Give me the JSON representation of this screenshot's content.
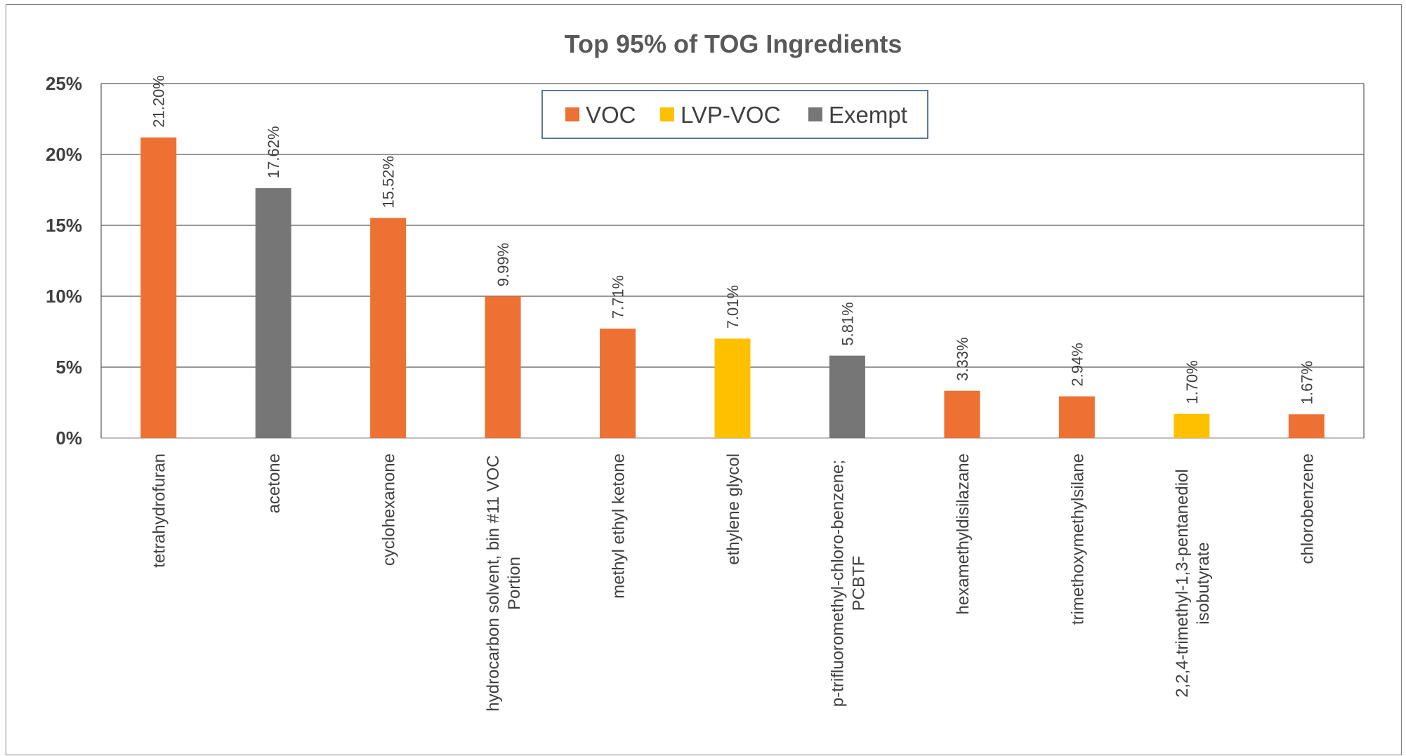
{
  "chart_data": {
    "type": "bar",
    "title": "Top 95% of TOG Ingredients",
    "xlabel": "",
    "ylabel": "",
    "ylim": [
      0,
      25
    ],
    "y_ticks": [
      "0%",
      "5%",
      "10%",
      "15%",
      "20%",
      "25%"
    ],
    "y_tick_values": [
      0,
      5,
      10,
      15,
      20,
      25
    ],
    "grid": true,
    "legend_position": "top-center",
    "legend": [
      {
        "name": "VOC",
        "color": "#ED7132"
      },
      {
        "name": "LVP-VOC",
        "color": "#FFC000"
      },
      {
        "name": "Exempt",
        "color": "#767676"
      }
    ],
    "categories": [
      [
        "tetrahydrofuran"
      ],
      [
        "acetone"
      ],
      [
        "cyclohexanone"
      ],
      [
        "hydrocarbon solvent, bin #11 VOC",
        "Portion"
      ],
      [
        "methyl ethyl ketone"
      ],
      [
        "ethylene glycol"
      ],
      [
        "p-trifluoromethyl-chloro-benzene;",
        "PCBTF"
      ],
      [
        "hexamethyldisilazane"
      ],
      [
        "trimethoxymethylsilane"
      ],
      [
        "2,2,4-trimethyl-1,3-pentanediol",
        "isobutyrate"
      ],
      [
        "chlorobenzene"
      ]
    ],
    "values": [
      21.2,
      17.62,
      15.52,
      9.99,
      7.71,
      7.01,
      5.81,
      3.33,
      2.94,
      1.7,
      1.67
    ],
    "value_labels": [
      "21.20%",
      "17.62%",
      "15.52%",
      "9.99%",
      "7.71%",
      "7.01%",
      "5.81%",
      "3.33%",
      "2.94%",
      "1.70%",
      "1.67%"
    ],
    "classes": [
      "VOC",
      "Exempt",
      "VOC",
      "VOC",
      "VOC",
      "LVP-VOC",
      "Exempt",
      "VOC",
      "VOC",
      "LVP-VOC",
      "VOC"
    ]
  }
}
